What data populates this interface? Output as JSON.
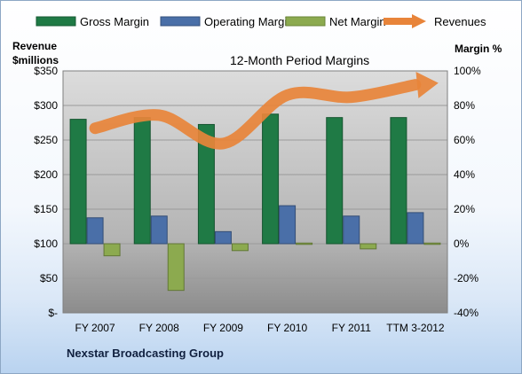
{
  "chart_data": {
    "type": "bar",
    "title": "12-Month Period Margins",
    "categories": [
      "FY 2007",
      "FY 2008",
      "FY 2009",
      "FY 2010",
      "FY 2011",
      "TTM 3-2012"
    ],
    "left_axis": {
      "label_line1": "Revenue",
      "label_line2": "$millions",
      "ylim": [
        0,
        350
      ],
      "ticks": [
        0,
        50,
        100,
        150,
        200,
        250,
        300,
        350
      ],
      "tick_labels": [
        "$-",
        "$50",
        "$100",
        "$150",
        "$200",
        "$250",
        "$300",
        "$350"
      ]
    },
    "right_axis": {
      "label": "Margin %",
      "ylim": [
        -40,
        100
      ],
      "ticks": [
        -40,
        -20,
        0,
        20,
        40,
        60,
        80,
        100
      ],
      "tick_labels": [
        "-40%",
        "-20%",
        "0%",
        "20%",
        "40%",
        "60%",
        "80%",
        "100%"
      ]
    },
    "series": [
      {
        "name": "Gross Margin",
        "axis": "right",
        "color": "#1f7a45",
        "values": [
          72,
          73,
          69,
          75,
          73,
          73
        ]
      },
      {
        "name": "Operating Margin",
        "axis": "right",
        "color": "#4a6fa8",
        "values": [
          15,
          16,
          7,
          22,
          16,
          18
        ]
      },
      {
        "name": "Net Margin",
        "axis": "right",
        "color": "#8caa4f",
        "values": [
          -7,
          -27,
          -4,
          0,
          -3,
          0
        ]
      },
      {
        "name": "Revenues",
        "axis": "left",
        "type": "line",
        "color": "#e8843a",
        "values": [
          267,
          286,
          245,
          315,
          312,
          330
        ]
      }
    ],
    "grid": true,
    "legend_position": "top"
  },
  "company": "Nexstar Broadcasting Group"
}
